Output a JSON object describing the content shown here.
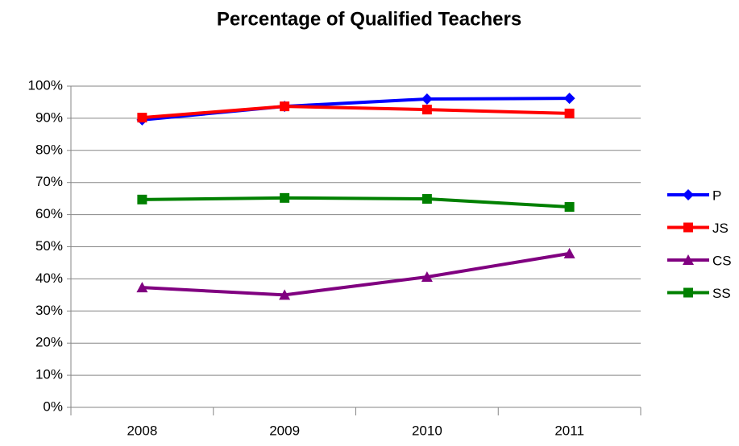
{
  "chart_data": {
    "type": "line",
    "title": "Percentage of Qualified Teachers",
    "categories": [
      "2008",
      "2009",
      "2010",
      "2011"
    ],
    "series": [
      {
        "name": "P",
        "color": "#0000ff",
        "marker": "diamond",
        "values": [
          89.5,
          93.7,
          96,
          96.2
        ]
      },
      {
        "name": "JS",
        "color": "#ff0000",
        "marker": "square",
        "values": [
          90.2,
          93.7,
          92.7,
          91.5
        ]
      },
      {
        "name": "CS",
        "color": "#800080",
        "marker": "triangle",
        "values": [
          37.3,
          35,
          40.6,
          47.9
        ]
      },
      {
        "name": "SS",
        "color": "#008000",
        "marker": "square",
        "values": [
          64.7,
          65.2,
          64.9,
          62.4
        ]
      }
    ],
    "ylim": [
      0,
      100
    ],
    "yticks": [
      {
        "value": 0,
        "label": "0%"
      },
      {
        "value": 10,
        "label": "10%"
      },
      {
        "value": 20,
        "label": "20%"
      },
      {
        "value": 30,
        "label": "30%"
      },
      {
        "value": 40,
        "label": "40%"
      },
      {
        "value": 50,
        "label": "50%"
      },
      {
        "value": 60,
        "label": "60%"
      },
      {
        "value": 70,
        "label": "70%"
      },
      {
        "value": 80,
        "label": "80%"
      },
      {
        "value": 90,
        "label": "90%"
      },
      {
        "value": 100,
        "label": "100%"
      }
    ],
    "grid": true,
    "legend": "right"
  }
}
